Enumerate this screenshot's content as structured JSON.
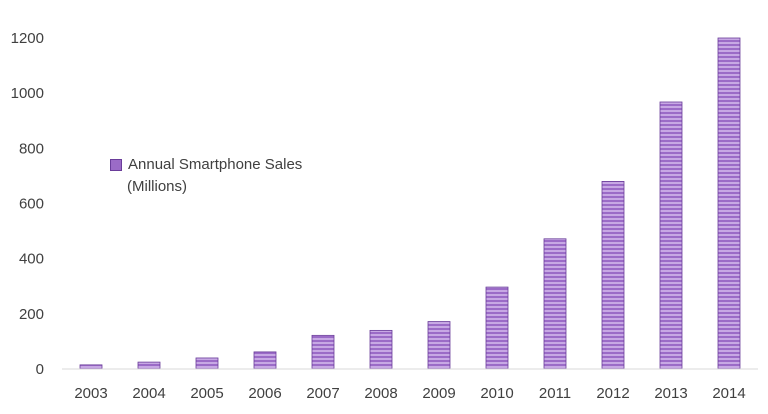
{
  "chart_data": {
    "type": "bar",
    "categories": [
      "2003",
      "2004",
      "2005",
      "2006",
      "2007",
      "2008",
      "2009",
      "2010",
      "2011",
      "2012",
      "2013",
      "2014"
    ],
    "series": [
      {
        "name": "Annual Smartphone Sales (Millions)",
        "values": [
          15,
          25,
          40,
          62,
          122,
          140,
          172,
          297,
          472,
          680,
          968,
          1200
        ]
      }
    ],
    "ylim": [
      0,
      1200
    ],
    "yticks": [
      0,
      200,
      400,
      600,
      800,
      1000,
      1200
    ],
    "title": "",
    "xlabel": "",
    "ylabel": "",
    "grid": false,
    "legend_position": "left-center",
    "bar_color": "#9b6bc7",
    "bar_stripe_color": "#c7a8e4",
    "bar_edge_color": "#6a3d9a"
  },
  "legend": {
    "line1": "Annual Smartphone Sales",
    "line2": "(Millions)"
  }
}
